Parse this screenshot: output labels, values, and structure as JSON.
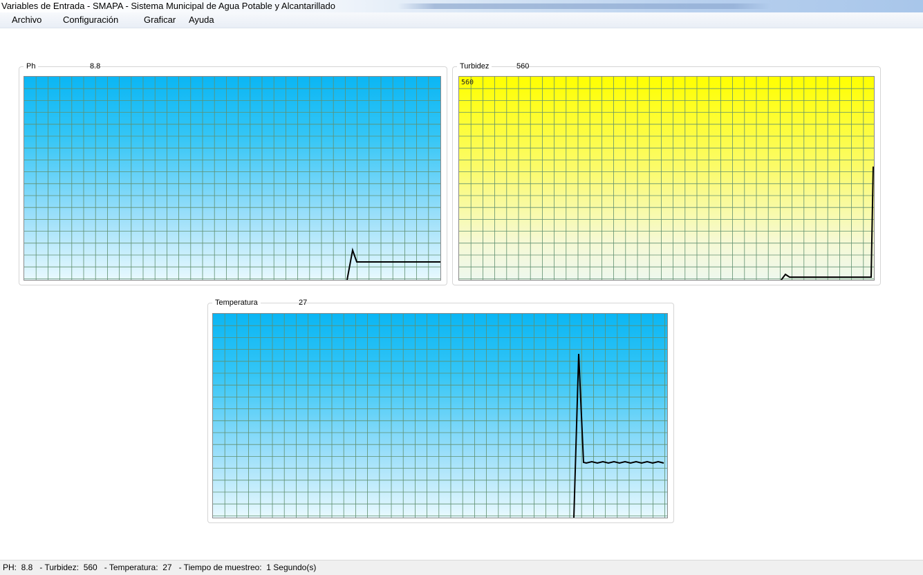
{
  "window": {
    "title": "Variables de Entrada - SMAPA - Sistema Municipal de Agua Potable y Alcantarillado"
  },
  "menu": {
    "items": [
      "Archivo",
      "Configuración",
      "Graficar",
      "Ayuda"
    ]
  },
  "panels": {
    "ph": {
      "label": "Ph",
      "value": "8.8"
    },
    "turbidez": {
      "label": "Turbidez",
      "value": "560",
      "plot_label": "560"
    },
    "temperatura": {
      "label": "Temperatura",
      "value": "27"
    }
  },
  "status": {
    "text": "PH:  8.8   - Turbidez:  560   - Temperatura:  27   - Tiempo de muestreo:  1 Segundo(s)"
  },
  "colors": {
    "blue_top": "#0bb6f4",
    "yellow_top": "#ffff00",
    "grid": "#5f8f6f",
    "trace": "#000000"
  }
}
